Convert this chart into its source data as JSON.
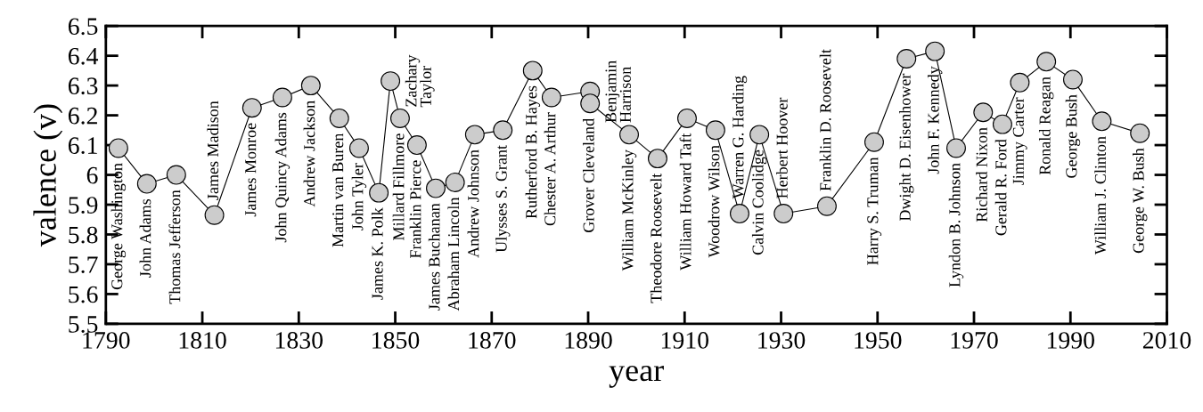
{
  "chart_data": {
    "type": "line",
    "xlabel": "year",
    "ylabel": "valence (v)",
    "x": [
      1792.6,
      1798.5,
      1804.6,
      1812.5,
      1820.3,
      1826.6,
      1832.5,
      1838.4,
      1842.5,
      1846.6,
      1849.0,
      1851.0,
      1854.5,
      1858.4,
      1862.4,
      1866.5,
      1872.3,
      1878.5,
      1882.4,
      1890.4,
      1890.4,
      1898.5,
      1904.4,
      1910.5,
      1916.4,
      1921.4,
      1925.5,
      1930.5,
      1939.5,
      1949.3,
      1956.0,
      1961.9,
      1966.3,
      1971.9,
      1975.9,
      1979.5,
      1985.0,
      1990.5,
      1996.5,
      2004.4
    ],
    "series": [
      {
        "color": "#cccccc",
        "values": [
          6.09,
          5.97,
          6.0,
          5.865,
          6.225,
          6.26,
          6.3,
          6.19,
          6.09,
          5.94,
          6.315,
          6.19,
          6.1,
          5.955,
          5.975,
          6.135,
          6.15,
          6.35,
          6.26,
          6.28,
          6.24,
          6.135,
          6.055,
          6.19,
          6.15,
          5.87,
          6.135,
          5.87,
          5.895,
          6.11,
          6.39,
          6.415,
          6.09,
          6.21,
          6.17,
          6.31,
          6.38,
          6.32,
          6.18,
          6.14
        ]
      }
    ],
    "marker": "circle",
    "line_style": "solid",
    "grid": false,
    "legend": false,
    "xlim": [
      1790,
      2010
    ],
    "xticks": [
      1790,
      1810,
      1830,
      1850,
      1870,
      1890,
      1910,
      1930,
      1950,
      1970,
      1990,
      2010
    ],
    "ylim": [
      5.5,
      6.5
    ],
    "yticks": [
      5.5,
      5.6,
      5.7,
      5.8,
      5.9,
      6,
      6.1,
      6.2,
      6.3,
      6.4,
      6.5
    ],
    "annotations": [
      {
        "text": "George Washington",
        "x": 1792.6,
        "y": 6.09
      },
      {
        "text": "John Adams",
        "x": 1798.5,
        "y": 5.97
      },
      {
        "text": "Thomas Jefferson",
        "x": 1804.6,
        "y": 6.0
      },
      {
        "text": "James Madison",
        "x": 1812.5,
        "y": 5.865
      },
      {
        "text": "James Monroe",
        "x": 1820.3,
        "y": 6.225
      },
      {
        "text": "John Quincy Adams",
        "x": 1826.6,
        "y": 6.26
      },
      {
        "text": "Andrew Jackson",
        "x": 1832.5,
        "y": 6.3
      },
      {
        "text": "Martin van Buren",
        "x": 1838.4,
        "y": 6.19
      },
      {
        "text": "John Tyler",
        "x": 1842.5,
        "y": 6.09
      },
      {
        "text": "James K. Polk",
        "x": 1846.6,
        "y": 5.94
      },
      {
        "text": "Zachary\nTaylor",
        "x": 1849.0,
        "y": 6.315
      },
      {
        "text": "Millard Fillmore",
        "x": 1851.0,
        "y": 6.19
      },
      {
        "text": "Franklin Pierce",
        "x": 1854.5,
        "y": 6.1
      },
      {
        "text": "James Buchanan",
        "x": 1858.4,
        "y": 5.955
      },
      {
        "text": "Abraham Lincoln",
        "x": 1862.4,
        "y": 5.975
      },
      {
        "text": "Andrew Johnson",
        "x": 1866.5,
        "y": 6.135
      },
      {
        "text": "Ulysses S. Grant",
        "x": 1872.3,
        "y": 6.15
      },
      {
        "text": "Rutherford B. Hayes",
        "x": 1878.5,
        "y": 6.35
      },
      {
        "text": "Chester A. Arthur",
        "x": 1882.4,
        "y": 6.26
      },
      {
        "text": "Benjamin\nHarrison",
        "x": 1890.4,
        "y": 6.28
      },
      {
        "text": "Grover Cleveland",
        "x": 1890.4,
        "y": 6.24
      },
      {
        "text": "William McKinley",
        "x": 1898.5,
        "y": 6.135
      },
      {
        "text": "Theodore Roosevelt",
        "x": 1904.4,
        "y": 6.055
      },
      {
        "text": "William Howard Taft",
        "x": 1910.5,
        "y": 6.19
      },
      {
        "text": "Woodrow Wilson",
        "x": 1916.4,
        "y": 6.15
      },
      {
        "text": "Warren G. Harding",
        "x": 1921.4,
        "y": 5.87
      },
      {
        "text": "Calvin Coolidge",
        "x": 1925.5,
        "y": 6.135
      },
      {
        "text": "Herbert Hoover",
        "x": 1930.5,
        "y": 5.87
      },
      {
        "text": "Franklin D. Roosevelt",
        "x": 1939.5,
        "y": 5.895
      },
      {
        "text": "Harry S. Truman",
        "x": 1949.3,
        "y": 6.11
      },
      {
        "text": "Dwight D. Eisenhower",
        "x": 1956.0,
        "y": 6.39
      },
      {
        "text": "John F. Kennedy",
        "x": 1961.9,
        "y": 6.415
      },
      {
        "text": "Lyndon B. Johnson",
        "x": 1966.3,
        "y": 6.09
      },
      {
        "text": "Richard Nixon",
        "x": 1971.9,
        "y": 6.21
      },
      {
        "text": "Gerald R. Ford",
        "x": 1975.9,
        "y": 6.17
      },
      {
        "text": "Jimmy Carter",
        "x": 1979.5,
        "y": 6.31
      },
      {
        "text": "Ronald Reagan",
        "x": 1985.0,
        "y": 6.38
      },
      {
        "text": "George Bush",
        "x": 1990.5,
        "y": 6.32
      },
      {
        "text": "William J. Clinton",
        "x": 1996.5,
        "y": 6.18
      },
      {
        "text": "George W. Bush",
        "x": 2004.4,
        "y": 6.14
      }
    ]
  }
}
